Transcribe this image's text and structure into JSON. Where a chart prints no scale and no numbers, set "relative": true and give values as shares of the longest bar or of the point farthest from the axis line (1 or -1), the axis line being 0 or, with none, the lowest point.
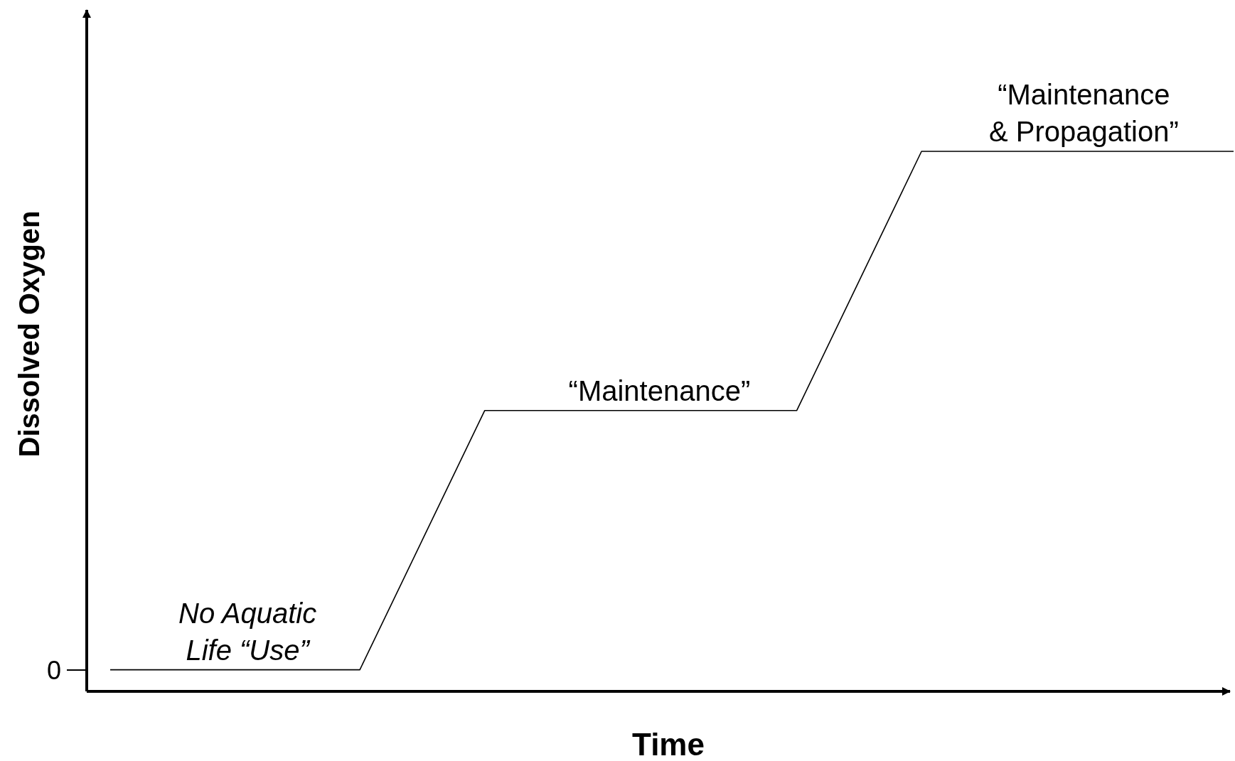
{
  "chart_data": {
    "type": "line",
    "xlabel": "Time",
    "ylabel": "Dissolved Oxygen",
    "relative": true,
    "categories": [
      null,
      null,
      null,
      null,
      null,
      null,
      null,
      null,
      null,
      null,
      null,
      null,
      null,
      null,
      null,
      null,
      null,
      null,
      null
    ],
    "series": [
      {
        "color": "#000000",
        "values": [
          0.04,
          0.04,
          0.04,
          0.04,
          0.04,
          0.28,
          0.52,
          0.52,
          0.52,
          0.52,
          0.52,
          0.52,
          0.76,
          1,
          1,
          1,
          1,
          1,
          1
        ]
      }
    ],
    "annotations": [
      "0",
      "No Aquatic\nLife “Use”",
      "“Maintenance”",
      "“Maintenance\n& Propagation”"
    ]
  }
}
